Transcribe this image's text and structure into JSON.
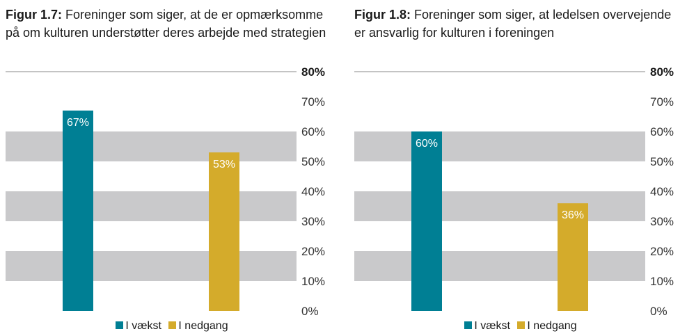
{
  "colors": {
    "band": "#c9c9cb",
    "axis_line": "#8a8a8a",
    "vaekst": "#007f94",
    "nedgang": "#d4ab2b"
  },
  "chart_data": [
    {
      "type": "bar",
      "fig_label": "Figur 1.7:",
      "title": "Foreninger som siger, at de er opmærksomme på om kulturen understøtter deres arbejde med strategien",
      "categories": [
        "I vækst",
        "I nedgang"
      ],
      "values": [
        67,
        53
      ],
      "value_labels": [
        "67%",
        "53%"
      ],
      "ylim": [
        0,
        80
      ],
      "yticks": [
        "0%",
        "10%",
        "20%",
        "30%",
        "40%",
        "50%",
        "60%",
        "70%",
        "80%"
      ],
      "legend": [
        "I vækst",
        "I nedgang"
      ],
      "legend_position": "bottom",
      "grid": "alternating horizontal bands"
    },
    {
      "type": "bar",
      "fig_label": "Figur 1.8:",
      "title": "Foreninger som siger, at ledelsen overvejende er ansvarlig for kulturen i foreningen",
      "categories": [
        "I vækst",
        "I nedgang"
      ],
      "values": [
        60,
        36
      ],
      "value_labels": [
        "60%",
        "36%"
      ],
      "ylim": [
        0,
        80
      ],
      "yticks": [
        "0%",
        "10%",
        "20%",
        "30%",
        "40%",
        "50%",
        "60%",
        "70%",
        "80%"
      ],
      "legend": [
        "I vækst",
        "I nedgang"
      ],
      "legend_position": "bottom",
      "grid": "alternating horizontal bands"
    }
  ]
}
